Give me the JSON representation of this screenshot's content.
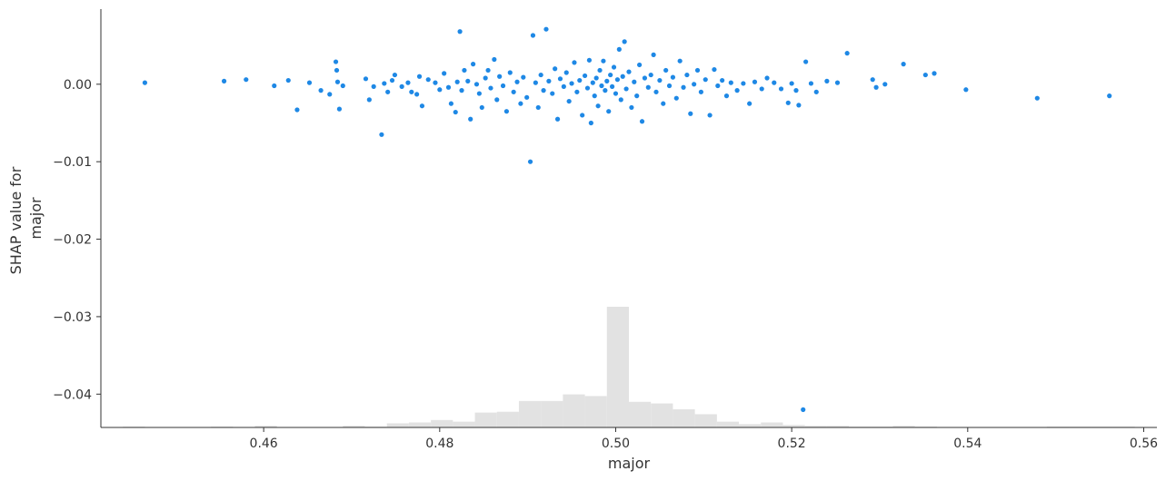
{
  "chart_data": {
    "type": "scatter",
    "title": "",
    "xlabel": "major",
    "ylabel": "SHAP value for\nmajor",
    "ylabel_lines": [
      "SHAP value for",
      "major"
    ],
    "xlim": [
      0.4415,
      0.5615
    ],
    "ylim": [
      -0.0443,
      0.0097
    ],
    "x_ticks": [
      0.46,
      0.48,
      0.5,
      0.52,
      0.54,
      0.56
    ],
    "x_tick_labels": [
      "0.46",
      "0.48",
      "0.50",
      "0.52",
      "0.54",
      "0.56"
    ],
    "y_ticks": [
      0.0,
      -0.01,
      -0.02,
      -0.03,
      -0.04
    ],
    "y_tick_labels": [
      "0.00",
      "−0.01",
      "−0.02",
      "−0.03",
      "−0.04"
    ],
    "grid": false,
    "colors": {
      "points": "#1e88e5",
      "histogram": "#e2e2e2",
      "axis": "#333333"
    },
    "histogram": {
      "bin_edges": [
        0.4415,
        0.444,
        0.4465,
        0.449,
        0.4515,
        0.454,
        0.4565,
        0.459,
        0.4615,
        0.464,
        0.4665,
        0.469,
        0.4715,
        0.474,
        0.4765,
        0.479,
        0.4815,
        0.484,
        0.4865,
        0.489,
        0.4915,
        0.494,
        0.4965,
        0.499,
        0.5015,
        0.504,
        0.5065,
        0.509,
        0.5115,
        0.514,
        0.5165,
        0.519,
        0.5215,
        0.524,
        0.5265,
        0.529,
        0.5315,
        0.534,
        0.5365,
        0.539,
        0.5415,
        0.544,
        0.5465,
        0.549,
        0.5515,
        0.554,
        0.5565,
        0.559,
        0.5615
      ],
      "heights": [
        0,
        1,
        0,
        0,
        0,
        1,
        0,
        2,
        0,
        0,
        0,
        2,
        1,
        5,
        6,
        9,
        7,
        18,
        19,
        32,
        32,
        40,
        38,
        146,
        31,
        29,
        22,
        16,
        7,
        4,
        6,
        3,
        2,
        2,
        1,
        1,
        2,
        1,
        0,
        0,
        0,
        0,
        0,
        1,
        1,
        1,
        1,
        0
      ]
    },
    "points": [
      [
        0.4465,
        0.0002
      ],
      [
        0.4555,
        0.0004
      ],
      [
        0.458,
        0.0006
      ],
      [
        0.4612,
        -0.0002
      ],
      [
        0.4628,
        0.0005
      ],
      [
        0.4638,
        -0.0033
      ],
      [
        0.4652,
        0.0002
      ],
      [
        0.4665,
        -0.0008
      ],
      [
        0.4675,
        -0.0013
      ],
      [
        0.4682,
        0.0029
      ],
      [
        0.4683,
        0.0018
      ],
      [
        0.4684,
        0.0003
      ],
      [
        0.4686,
        -0.0032
      ],
      [
        0.469,
        -0.0002
      ],
      [
        0.4716,
        0.0007
      ],
      [
        0.472,
        -0.002
      ],
      [
        0.4725,
        -0.0003
      ],
      [
        0.4734,
        -0.0065
      ],
      [
        0.4737,
        0.0001
      ],
      [
        0.4741,
        -0.001
      ],
      [
        0.4746,
        0.0005
      ],
      [
        0.4749,
        0.0012
      ],
      [
        0.4757,
        -0.0003
      ],
      [
        0.4764,
        0.0002
      ],
      [
        0.4768,
        -0.001
      ],
      [
        0.4774,
        -0.0013
      ],
      [
        0.4777,
        0.001
      ],
      [
        0.478,
        -0.0028
      ],
      [
        0.4787,
        0.0006
      ],
      [
        0.4795,
        0.0002
      ],
      [
        0.48,
        -0.0007
      ],
      [
        0.4805,
        0.0014
      ],
      [
        0.481,
        -0.0004
      ],
      [
        0.4813,
        -0.0025
      ],
      [
        0.4818,
        -0.0036
      ],
      [
        0.482,
        0.0003
      ],
      [
        0.4823,
        0.0068
      ],
      [
        0.4825,
        -0.0008
      ],
      [
        0.4828,
        0.0018
      ],
      [
        0.4832,
        0.0004
      ],
      [
        0.4835,
        -0.0045
      ],
      [
        0.4838,
        0.0026
      ],
      [
        0.4842,
        0.0
      ],
      [
        0.4845,
        -0.0012
      ],
      [
        0.4848,
        -0.003
      ],
      [
        0.4852,
        0.0008
      ],
      [
        0.4855,
        0.0018
      ],
      [
        0.4858,
        -0.0005
      ],
      [
        0.4862,
        0.0032
      ],
      [
        0.4865,
        -0.002
      ],
      [
        0.4868,
        0.001
      ],
      [
        0.4872,
        -0.0002
      ],
      [
        0.4876,
        -0.0035
      ],
      [
        0.488,
        0.0015
      ],
      [
        0.4884,
        -0.001
      ],
      [
        0.4888,
        0.0003
      ],
      [
        0.4892,
        -0.0025
      ],
      [
        0.4895,
        0.0009
      ],
      [
        0.4899,
        -0.0017
      ],
      [
        0.4903,
        -0.01
      ],
      [
        0.4906,
        0.0063
      ],
      [
        0.4909,
        0.0002
      ],
      [
        0.4912,
        -0.003
      ],
      [
        0.4915,
        0.0012
      ],
      [
        0.4918,
        -0.0008
      ],
      [
        0.4921,
        0.0071
      ],
      [
        0.4924,
        0.0004
      ],
      [
        0.4928,
        -0.0012
      ],
      [
        0.4931,
        0.002
      ],
      [
        0.4934,
        -0.0045
      ],
      [
        0.4937,
        0.0007
      ],
      [
        0.4941,
        -0.0003
      ],
      [
        0.4944,
        0.0015
      ],
      [
        0.4947,
        -0.0022
      ],
      [
        0.495,
        0.0001
      ],
      [
        0.4953,
        0.0028
      ],
      [
        0.4956,
        -0.001
      ],
      [
        0.4959,
        0.0005
      ],
      [
        0.4962,
        -0.004
      ],
      [
        0.4965,
        0.0011
      ],
      [
        0.4968,
        -0.0005
      ],
      [
        0.497,
        0.0031
      ],
      [
        0.4972,
        -0.005
      ],
      [
        0.4974,
        0.0002
      ],
      [
        0.4976,
        -0.0015
      ],
      [
        0.4978,
        0.0008
      ],
      [
        0.498,
        -0.0028
      ],
      [
        0.4982,
        0.0018
      ],
      [
        0.4984,
        -0.0002
      ],
      [
        0.4986,
        0.003
      ],
      [
        0.4988,
        -0.0008
      ],
      [
        0.499,
        0.0004
      ],
      [
        0.4992,
        -0.0035
      ],
      [
        0.4994,
        0.0012
      ],
      [
        0.4996,
        -0.0003
      ],
      [
        0.4998,
        0.0022
      ],
      [
        0.5,
        -0.0012
      ],
      [
        0.5002,
        0.0006
      ],
      [
        0.5004,
        0.0045
      ],
      [
        0.5006,
        -0.002
      ],
      [
        0.5008,
        0.001
      ],
      [
        0.501,
        0.0055
      ],
      [
        0.5012,
        -0.0006
      ],
      [
        0.5015,
        0.0016
      ],
      [
        0.5018,
        -0.003
      ],
      [
        0.5021,
        0.0003
      ],
      [
        0.5024,
        -0.0015
      ],
      [
        0.5027,
        0.0025
      ],
      [
        0.503,
        -0.0048
      ],
      [
        0.5033,
        0.0008
      ],
      [
        0.5037,
        -0.0004
      ],
      [
        0.504,
        0.0012
      ],
      [
        0.5043,
        0.0038
      ],
      [
        0.5046,
        -0.001
      ],
      [
        0.505,
        0.0005
      ],
      [
        0.5054,
        -0.0025
      ],
      [
        0.5057,
        0.0018
      ],
      [
        0.5061,
        -0.0002
      ],
      [
        0.5065,
        0.0009
      ],
      [
        0.5069,
        -0.0018
      ],
      [
        0.5073,
        0.003
      ],
      [
        0.5077,
        -0.0004
      ],
      [
        0.5081,
        0.0012
      ],
      [
        0.5085,
        -0.0038
      ],
      [
        0.5089,
        0.0
      ],
      [
        0.5093,
        0.0018
      ],
      [
        0.5097,
        -0.001
      ],
      [
        0.5102,
        0.0006
      ],
      [
        0.5107,
        -0.004
      ],
      [
        0.5112,
        0.0019
      ],
      [
        0.5116,
        -0.0002
      ],
      [
        0.5121,
        0.0005
      ],
      [
        0.5126,
        -0.0015
      ],
      [
        0.5131,
        0.0002
      ],
      [
        0.5138,
        -0.0008
      ],
      [
        0.5145,
        0.0001
      ],
      [
        0.5152,
        -0.0025
      ],
      [
        0.5158,
        0.0003
      ],
      [
        0.5166,
        -0.0006
      ],
      [
        0.5172,
        0.0008
      ],
      [
        0.518,
        0.0002
      ],
      [
        0.5188,
        -0.0006
      ],
      [
        0.5196,
        -0.0024
      ],
      [
        0.52,
        0.0001
      ],
      [
        0.5205,
        -0.0008
      ],
      [
        0.5208,
        -0.0027
      ],
      [
        0.5213,
        -0.042
      ],
      [
        0.5216,
        0.0029
      ],
      [
        0.5222,
        0.0001
      ],
      [
        0.5228,
        -0.001
      ],
      [
        0.524,
        0.0004
      ],
      [
        0.5252,
        0.0002
      ],
      [
        0.5263,
        0.004
      ],
      [
        0.5292,
        0.0006
      ],
      [
        0.5296,
        -0.0004
      ],
      [
        0.5306,
        0.0
      ],
      [
        0.5327,
        0.0026
      ],
      [
        0.5352,
        0.0012
      ],
      [
        0.5362,
        0.0014
      ],
      [
        0.5398,
        -0.0007
      ],
      [
        0.5479,
        -0.0018
      ],
      [
        0.5561,
        -0.0015
      ]
    ]
  }
}
